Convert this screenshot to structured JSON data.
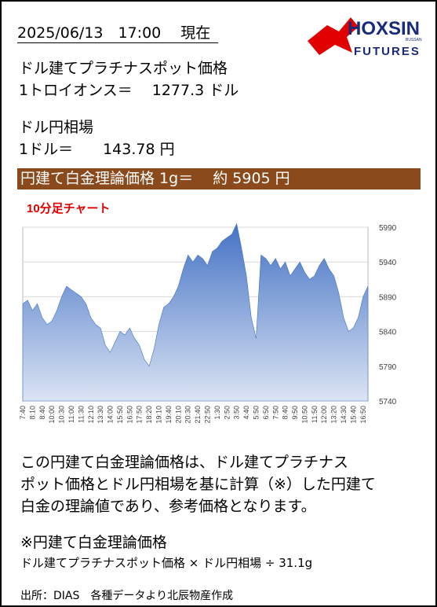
{
  "header": {
    "datetime": "2025/06/13　17:00　 現在",
    "logo_main": "HOXSIN",
    "logo_small": "BUSSAN",
    "logo_sub": "FUTURES"
  },
  "quotes": {
    "platinum_label": "ドル建てプラチナスポット価格",
    "platinum_value": "1トロイオンス＝　 1277.3 ドル",
    "fx_label": "ドル円相場",
    "fx_value": "1ドル＝　　143.78 円",
    "yen_price": "円建て白金理論価格 1g＝　 約 5905 円"
  },
  "chart_data": {
    "type": "area",
    "title": "10分足チャート",
    "color": "#4472c4",
    "categories": [
      "7:40",
      null,
      "8:10",
      null,
      "8:40",
      null,
      "10:00",
      null,
      "10:30",
      null,
      "11:00",
      null,
      "11:30",
      null,
      "12:10",
      null,
      "13:30",
      null,
      "14:00",
      null,
      "15:50",
      null,
      "16:50",
      null,
      "17:50",
      null,
      "18:20",
      null,
      "19:10",
      null,
      "19:40",
      null,
      "20:10",
      null,
      "20:30",
      null,
      "21:40",
      null,
      "22:50",
      null,
      "1:30",
      null,
      "2:50",
      null,
      "3:50",
      null,
      "4:40",
      null,
      "5:50",
      null,
      "6:50",
      null,
      "7:50",
      null,
      "8:40",
      null,
      "9:50",
      null,
      "10:50",
      null,
      "11:50",
      null,
      "12:00",
      null,
      "13:20",
      null,
      "14:30",
      null,
      "15:40",
      null,
      "16:50",
      null
    ],
    "values": [
      5880,
      5885,
      5870,
      5880,
      5860,
      5850,
      5855,
      5870,
      5890,
      5905,
      5900,
      5895,
      5890,
      5880,
      5860,
      5850,
      5845,
      5820,
      5810,
      5825,
      5840,
      5835,
      5845,
      5830,
      5820,
      5800,
      5790,
      5815,
      5850,
      5875,
      5880,
      5890,
      5905,
      5930,
      5950,
      5940,
      5950,
      5945,
      5935,
      5955,
      5960,
      5970,
      5975,
      5980,
      5995,
      5960,
      5920,
      5860,
      5830,
      5950,
      5945,
      5935,
      5945,
      5930,
      5940,
      5920,
      5930,
      5940,
      5925,
      5915,
      5920,
      5935,
      5945,
      5930,
      5920,
      5895,
      5860,
      5840,
      5845,
      5860,
      5890,
      5905
    ],
    "ylim": [
      5740,
      5990
    ],
    "yticks": [
      5740,
      5790,
      5840,
      5890,
      5940,
      5990
    ],
    "grid": true
  },
  "notes": {
    "lines": [
      "この円建て白金理論価格は、ドル建てプラチナス",
      "ポット価格とドル円相場を基に計算（※）した円建て",
      "白金の理論値であり、参考価格となります。"
    ],
    "formula_title": "※円建て白金理論価格",
    "formula": "ドル建てプラチナスポット価格 × ドル円相場 ÷ 31.1g",
    "source": "出所：DIAS　各種データより北辰物産作成"
  }
}
